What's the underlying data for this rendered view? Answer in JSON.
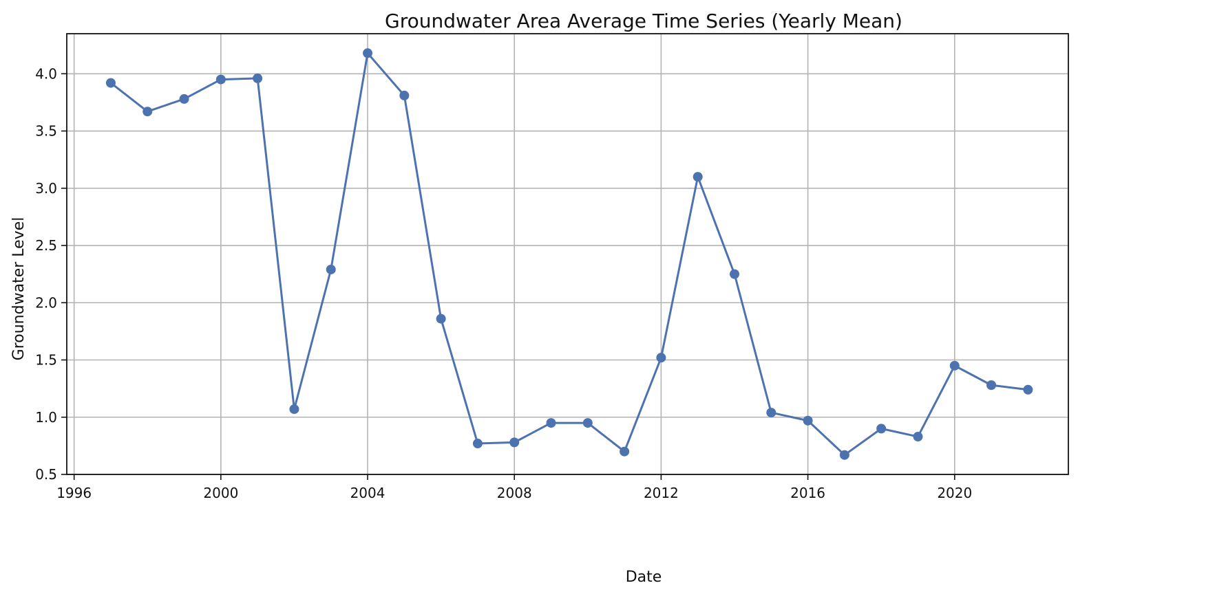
{
  "chart_data": {
    "type": "line",
    "title": "Groundwater Area Average Time Series (Yearly Mean)",
    "xlabel": "Date",
    "ylabel": "Groundwater Level",
    "xlim": [
      1995.8,
      2023.1
    ],
    "ylim": [
      0.5,
      4.35
    ],
    "xticks": [
      1996,
      2000,
      2004,
      2008,
      2012,
      2016,
      2020
    ],
    "yticks": [
      0.5,
      1.0,
      1.5,
      2.0,
      2.5,
      3.0,
      3.5,
      4.0
    ],
    "grid": true,
    "markers": true,
    "series": [
      {
        "color": "#4c72b0",
        "x": [
          1997,
          1998,
          1999,
          2000,
          2001,
          2002,
          2003,
          2004,
          2005,
          2006,
          2007,
          2008,
          2009,
          2010,
          2011,
          2012,
          2013,
          2014,
          2015,
          2016,
          2017,
          2018,
          2019,
          2020,
          2021,
          2022
        ],
        "y": [
          3.92,
          3.67,
          3.78,
          3.95,
          3.96,
          1.07,
          2.29,
          4.18,
          3.81,
          1.86,
          0.77,
          0.78,
          0.95,
          0.95,
          0.7,
          1.52,
          3.1,
          2.25,
          1.04,
          0.97,
          0.67,
          0.9,
          0.83,
          1.45,
          1.28,
          1.24
        ]
      }
    ]
  }
}
